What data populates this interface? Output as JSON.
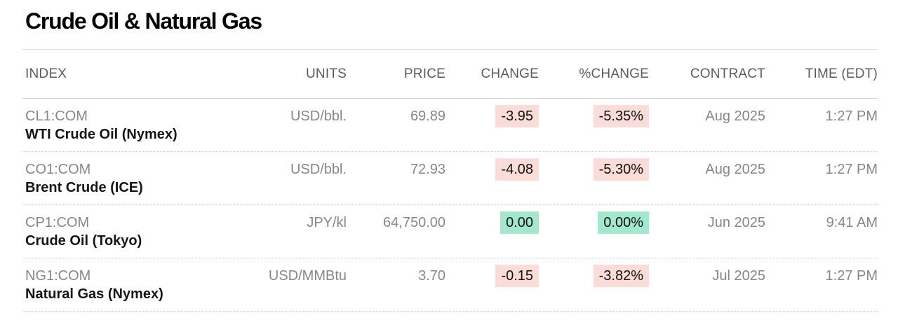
{
  "page": {
    "title": "Crude Oil & Natural Gas"
  },
  "table": {
    "columns": [
      "INDEX",
      "UNITS",
      "PRICE",
      "CHANGE",
      "%CHANGE",
      "CONTRACT",
      "TIME (EDT)"
    ],
    "rows": [
      {
        "ticker": "CL1:COM",
        "name": "WTI Crude Oil (Nymex)",
        "units": "USD/bbl.",
        "price": "69.89",
        "change": "-3.95",
        "pct_change": "-5.35%",
        "change_state": "down",
        "contract": "Aug 2025",
        "time": "1:27 PM"
      },
      {
        "ticker": "CO1:COM",
        "name": "Brent Crude (ICE)",
        "units": "USD/bbl.",
        "price": "72.93",
        "change": "-4.08",
        "pct_change": "-5.30%",
        "change_state": "down",
        "contract": "Aug 2025",
        "time": "1:27 PM"
      },
      {
        "ticker": "CP1:COM",
        "name": "Crude Oil (Tokyo)",
        "units": "JPY/kl",
        "price": "64,750.00",
        "change": "0.00",
        "pct_change": "0.00%",
        "change_state": "flat",
        "contract": "Jun 2025",
        "time": "9:41 AM"
      },
      {
        "ticker": "NG1:COM",
        "name": "Natural Gas (Nymex)",
        "units": "USD/MMBtu",
        "price": "3.70",
        "change": "-0.15",
        "pct_change": "-3.82%",
        "change_state": "down",
        "contract": "Jul 2025",
        "time": "1:27 PM"
      }
    ]
  },
  "colors": {
    "negative_badge_bg": "#fadcd9",
    "flat_badge_bg": "#a3e8cd",
    "muted_text": "#878787",
    "header_text": "#5c5c5c"
  }
}
